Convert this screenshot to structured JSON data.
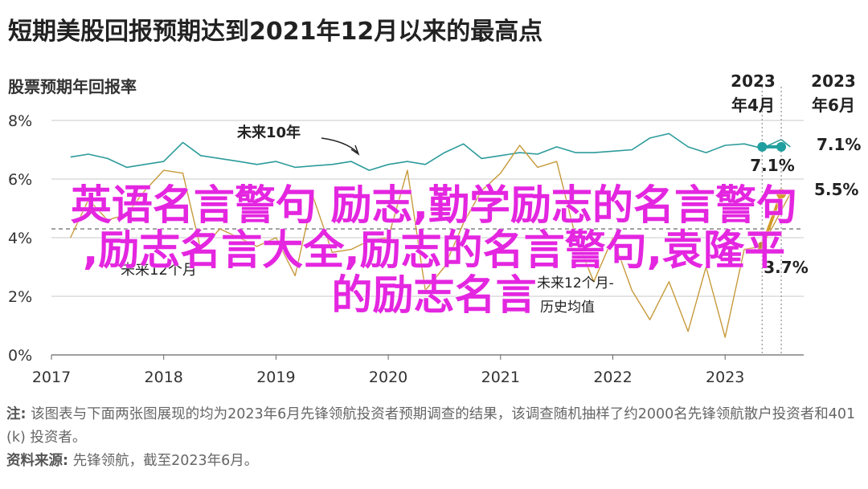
{
  "title": "短期美股回报预期达到2021年12月以来的最高点",
  "subtitle": "股票预期年回报率",
  "overlay": {
    "line1": "英语名言警句 励志,勤学励志的名言警句",
    "line2": ",励志名言大全,励志的名言警句,袁隆平",
    "line3": "的励志名言"
  },
  "footer": {
    "note_label": "注:",
    "note_text": "该图表与下面两张图展现的均为2023年6月先锋领航投资者预期调查的结果，该调查随机抽样了约2000名先锋领航散户投资者和401 (k) 投资者。",
    "source_label": "资料来源:",
    "source_text": "先锋领航，截至2023年6月。"
  },
  "chart_data": {
    "type": "line",
    "x_ticks": [
      "2017",
      "2018",
      "2019",
      "2020",
      "2021",
      "2022",
      "2023"
    ],
    "y_ticks": [
      "0%",
      "2%",
      "4%",
      "6%",
      "8%"
    ],
    "ylim": [
      0,
      8
    ],
    "xlim": [
      2017,
      2023.7
    ],
    "gridlines": true,
    "reference_line": 4.3,
    "series": [
      {
        "name": "未来10年",
        "color": "#2d9b9b",
        "points": [
          [
            2017.17,
            6.75
          ],
          [
            2017.33,
            6.85
          ],
          [
            2017.5,
            6.7
          ],
          [
            2017.67,
            6.4
          ],
          [
            2017.83,
            6.5
          ],
          [
            2018.0,
            6.6
          ],
          [
            2018.17,
            7.25
          ],
          [
            2018.33,
            6.8
          ],
          [
            2018.5,
            6.7
          ],
          [
            2018.67,
            6.6
          ],
          [
            2018.83,
            6.5
          ],
          [
            2019.0,
            6.6
          ],
          [
            2019.17,
            6.4
          ],
          [
            2019.33,
            6.45
          ],
          [
            2019.5,
            6.5
          ],
          [
            2019.67,
            6.6
          ],
          [
            2019.83,
            6.3
          ],
          [
            2020.0,
            6.5
          ],
          [
            2020.17,
            6.6
          ],
          [
            2020.33,
            6.5
          ],
          [
            2020.5,
            6.9
          ],
          [
            2020.67,
            7.2
          ],
          [
            2020.83,
            6.7
          ],
          [
            2021.0,
            6.8
          ],
          [
            2021.17,
            6.9
          ],
          [
            2021.33,
            6.85
          ],
          [
            2021.5,
            7.1
          ],
          [
            2021.67,
            6.9
          ],
          [
            2021.83,
            6.9
          ],
          [
            2022.0,
            6.95
          ],
          [
            2022.17,
            7.0
          ],
          [
            2022.33,
            7.4
          ],
          [
            2022.5,
            7.55
          ],
          [
            2022.67,
            7.1
          ],
          [
            2022.83,
            6.9
          ],
          [
            2023.0,
            7.15
          ],
          [
            2023.17,
            7.2
          ],
          [
            2023.33,
            7.05
          ],
          [
            2023.5,
            7.35
          ],
          [
            2023.58,
            7.1
          ]
        ]
      },
      {
        "name": "未来12个月",
        "color": "#c79a3b",
        "points": [
          [
            2017.17,
            4.0
          ],
          [
            2017.33,
            5.3
          ],
          [
            2017.5,
            4.6
          ],
          [
            2017.67,
            4.8
          ],
          [
            2017.83,
            5.6
          ],
          [
            2018.0,
            6.3
          ],
          [
            2018.17,
            6.2
          ],
          [
            2018.33,
            3.6
          ],
          [
            2018.5,
            4.3
          ],
          [
            2018.67,
            4.0
          ],
          [
            2018.83,
            3.7
          ],
          [
            2019.0,
            4.0
          ],
          [
            2019.17,
            2.7
          ],
          [
            2019.33,
            5.4
          ],
          [
            2019.5,
            3.5
          ],
          [
            2019.67,
            3.6
          ],
          [
            2019.83,
            3.9
          ],
          [
            2020.0,
            4.0
          ],
          [
            2020.17,
            6.3
          ],
          [
            2020.33,
            2.2
          ],
          [
            2020.5,
            3.0
          ],
          [
            2020.67,
            4.5
          ],
          [
            2020.83,
            5.6
          ],
          [
            2021.0,
            6.2
          ],
          [
            2021.17,
            7.15
          ],
          [
            2021.33,
            6.4
          ],
          [
            2021.5,
            6.6
          ],
          [
            2021.67,
            4.0
          ],
          [
            2021.83,
            2.5
          ],
          [
            2022.0,
            4.0
          ],
          [
            2022.17,
            2.2
          ],
          [
            2022.33,
            1.2
          ],
          [
            2022.5,
            2.5
          ],
          [
            2022.67,
            0.8
          ],
          [
            2022.83,
            3.0
          ],
          [
            2023.0,
            0.6
          ],
          [
            2023.17,
            3.6
          ],
          [
            2023.33,
            3.7
          ],
          [
            2023.58,
            5.5
          ]
        ]
      }
    ],
    "annotations": {
      "ten_year_label": "未来10年",
      "twelve_month_label": "未来12个月",
      "avg_label_line1": "未来12个月-",
      "avg_label_line2": "历史均值",
      "apr_label_line1": "2023",
      "apr_label_line2": "年4月",
      "jun_label_line1": "2023",
      "jun_label_line2": "年6月",
      "teal_apr_value": "7.1%",
      "teal_jun_value": "7.1%",
      "gold_apr_value": "3.7%",
      "gold_jun_value": "5.5%"
    },
    "highlight": {
      "apr": {
        "x": 2023.33,
        "teal": 7.1,
        "gold": 3.7
      },
      "jun": {
        "x": 2023.5,
        "teal": 7.1,
        "gold": 5.5
      }
    }
  }
}
